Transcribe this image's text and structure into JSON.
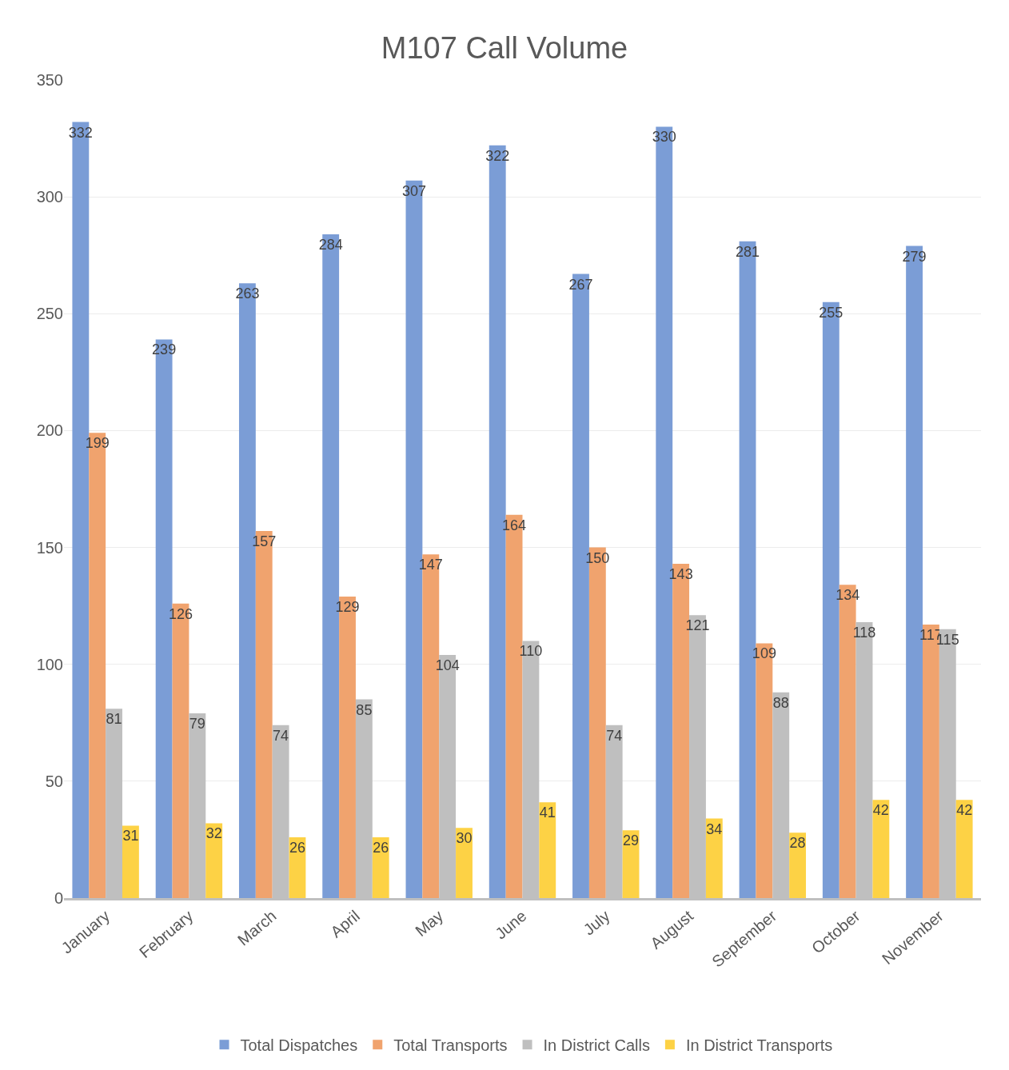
{
  "chart_data": {
    "type": "bar",
    "title": "M107 Call Volume",
    "categories": [
      "January",
      "February",
      "March",
      "April",
      "May",
      "June",
      "July",
      "August",
      "September",
      "October",
      "November"
    ],
    "series": [
      {
        "name": "Total Dispatches",
        "color": "#7b9dd6",
        "values": [
          332,
          239,
          263,
          284,
          307,
          322,
          267,
          330,
          281,
          255,
          279
        ]
      },
      {
        "name": "Total Transports",
        "color": "#f0a36e",
        "values": [
          199,
          126,
          157,
          129,
          147,
          164,
          150,
          143,
          109,
          134,
          117
        ]
      },
      {
        "name": "In District Calls",
        "color": "#bfbfbf",
        "values": [
          81,
          79,
          74,
          85,
          104,
          110,
          74,
          121,
          88,
          118,
          115
        ]
      },
      {
        "name": "In District Transports",
        "color": "#fdd245",
        "values": [
          31,
          32,
          26,
          26,
          30,
          41,
          29,
          34,
          28,
          42,
          42
        ]
      }
    ],
    "ylim": [
      0,
      350
    ],
    "yticks": [
      0,
      50,
      100,
      150,
      200,
      250,
      300,
      350
    ],
    "grid": "y",
    "legend": "bottom",
    "data_labels": true
  }
}
